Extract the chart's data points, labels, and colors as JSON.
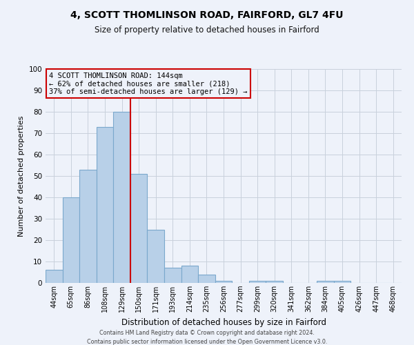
{
  "title": "4, SCOTT THOMLINSON ROAD, FAIRFORD, GL7 4FU",
  "subtitle": "Size of property relative to detached houses in Fairford",
  "xlabel": "Distribution of detached houses by size in Fairford",
  "ylabel": "Number of detached properties",
  "bar_labels": [
    "44sqm",
    "65sqm",
    "86sqm",
    "108sqm",
    "129sqm",
    "150sqm",
    "171sqm",
    "193sqm",
    "214sqm",
    "235sqm",
    "256sqm",
    "277sqm",
    "299sqm",
    "320sqm",
    "341sqm",
    "362sqm",
    "384sqm",
    "405sqm",
    "426sqm",
    "447sqm",
    "468sqm"
  ],
  "bar_values": [
    6,
    40,
    53,
    73,
    80,
    51,
    25,
    7,
    8,
    4,
    1,
    0,
    1,
    1,
    0,
    0,
    1,
    1,
    0,
    0,
    0
  ],
  "bar_color": "#b8d0e8",
  "bar_edge_color": "#7aa8cc",
  "property_line_index": 4,
  "property_line_color": "#cc0000",
  "ylim": [
    0,
    100
  ],
  "yticks": [
    0,
    10,
    20,
    30,
    40,
    50,
    60,
    70,
    80,
    90,
    100
  ],
  "annotation_lines": [
    "4 SCOTT THOMLINSON ROAD: 144sqm",
    "← 62% of detached houses are smaller (218)",
    "37% of semi-detached houses are larger (129) →"
  ],
  "annotation_box_edge_color": "#cc0000",
  "bg_color": "#eef2fa",
  "footer_line1": "Contains HM Land Registry data © Crown copyright and database right 2024.",
  "footer_line2": "Contains public sector information licensed under the Open Government Licence v3.0."
}
